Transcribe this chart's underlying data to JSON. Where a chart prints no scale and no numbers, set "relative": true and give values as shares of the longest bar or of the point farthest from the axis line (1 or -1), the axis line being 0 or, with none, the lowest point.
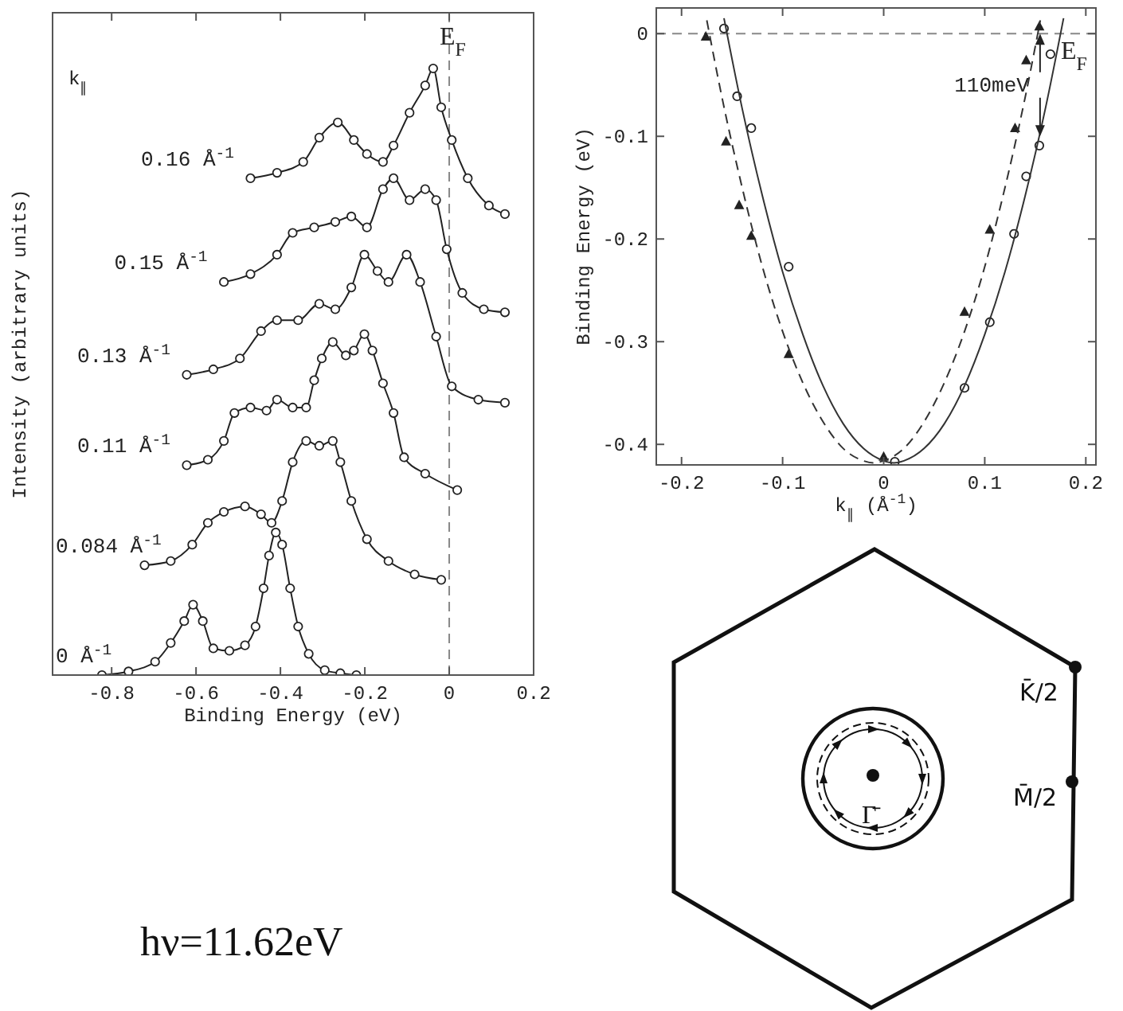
{
  "chart_data": [
    {
      "type": "line",
      "relative": true,
      "xlabel": "Binding Energy (eV)",
      "ylabel": "Intensity (arbitrary units)",
      "legend_title": "k$_{∥}$",
      "xlim": [
        -0.94,
        0.2
      ],
      "xticks": [
        -0.8,
        -0.6,
        -0.4,
        -0.2,
        0,
        0.2
      ],
      "marker": "circle",
      "grid": false,
      "ref_lines": [
        {
          "axis": "x",
          "value": 0,
          "label": "E$_{F}$",
          "line_style": "dashed"
        }
      ],
      "series": [
        {
          "name": "0.16 Å$^{-1}$",
          "color": "#222222",
          "x": [
            -0.471,
            -0.408,
            -0.346,
            -0.308,
            -0.264,
            -0.226,
            -0.195,
            -0.157,
            -0.132,
            -0.094,
            -0.057,
            -0.038,
            -0.019,
            0.006,
            0.044,
            0.094,
            0.132
          ],
          "values": [
            0.819,
            0.828,
            0.846,
            0.886,
            0.911,
            0.882,
            0.859,
            0.846,
            0.873,
            0.927,
            0.972,
            1.0,
            0.936,
            0.882,
            0.819,
            0.774,
            0.76
          ]
        },
        {
          "name": "0.15 Å$^{-1}$",
          "color": "#222222",
          "x": [
            -0.534,
            -0.471,
            -0.408,
            -0.371,
            -0.32,
            -0.27,
            -0.232,
            -0.195,
            -0.157,
            -0.132,
            -0.094,
            -0.057,
            -0.031,
            -0.006,
            0.031,
            0.082,
            0.132
          ],
          "values": [
            0.648,
            0.661,
            0.693,
            0.729,
            0.738,
            0.747,
            0.756,
            0.738,
            0.801,
            0.819,
            0.783,
            0.801,
            0.783,
            0.702,
            0.63,
            0.603,
            0.598
          ]
        },
        {
          "name": "0.13 Å$^{-1}$",
          "color": "#222222",
          "x": [
            -0.622,
            -0.559,
            -0.496,
            -0.446,
            -0.408,
            -0.358,
            -0.308,
            -0.27,
            -0.232,
            -0.201,
            -0.17,
            -0.144,
            -0.101,
            -0.069,
            -0.031,
            0.006,
            0.069,
            0.132
          ],
          "values": [
            0.495,
            0.504,
            0.522,
            0.567,
            0.585,
            0.585,
            0.612,
            0.603,
            0.639,
            0.693,
            0.666,
            0.648,
            0.693,
            0.648,
            0.558,
            0.476,
            0.454,
            0.449
          ]
        },
        {
          "name": "0.11 Å$^{-1}$",
          "color": "#222222",
          "x": [
            -0.622,
            -0.572,
            -0.534,
            -0.509,
            -0.471,
            -0.433,
            -0.408,
            -0.371,
            -0.339,
            -0.32,
            -0.302,
            -0.276,
            -0.245,
            -0.226,
            -0.201,
            -0.182,
            -0.157,
            -0.132,
            -0.107,
            -0.057,
            0.019
          ],
          "values": [
            0.346,
            0.355,
            0.386,
            0.432,
            0.441,
            0.436,
            0.454,
            0.441,
            0.441,
            0.486,
            0.522,
            0.549,
            0.527,
            0.535,
            0.562,
            0.535,
            0.481,
            0.432,
            0.359,
            0.332,
            0.305
          ]
        },
        {
          "name": "0.084 Å$^{-1}$",
          "color": "#222222",
          "x": [
            -0.722,
            -0.66,
            -0.609,
            -0.572,
            -0.534,
            -0.484,
            -0.446,
            -0.421,
            -0.396,
            -0.371,
            -0.339,
            -0.308,
            -0.276,
            -0.258,
            -0.232,
            -0.195,
            -0.144,
            -0.082,
            -0.019
          ],
          "values": [
            0.181,
            0.188,
            0.215,
            0.251,
            0.269,
            0.278,
            0.265,
            0.251,
            0.287,
            0.351,
            0.386,
            0.378,
            0.386,
            0.351,
            0.287,
            0.224,
            0.188,
            0.166,
            0.157
          ]
        },
        {
          "name": "0 Å$^{-1}$",
          "color": "#222222",
          "x": [
            -0.823,
            -0.76,
            -0.697,
            -0.66,
            -0.628,
            -0.607,
            -0.584,
            -0.559,
            -0.521,
            -0.484,
            -0.459,
            -0.44,
            -0.427,
            -0.411,
            -0.396,
            -0.377,
            -0.358,
            -0.333,
            -0.295,
            -0.258,
            -0.22
          ],
          "values": [
            0.0,
            0.006,
            0.022,
            0.053,
            0.089,
            0.116,
            0.089,
            0.044,
            0.04,
            0.049,
            0.08,
            0.143,
            0.197,
            0.235,
            0.215,
            0.143,
            0.08,
            0.035,
            0.008,
            0.003,
            0.0
          ]
        }
      ]
    },
    {
      "type": "scatter",
      "xlabel": "k$_{∥}$ (Å$^{-1}$)",
      "ylabel": "Binding Energy (eV)",
      "xlim": [
        -0.225,
        0.21
      ],
      "ylim": [
        -0.42,
        0.025
      ],
      "xticks": [
        -0.2,
        -0.1,
        0,
        0.1,
        0.2
      ],
      "yticks": [
        0,
        -0.1,
        -0.2,
        -0.3,
        -0.4
      ],
      "grid": false,
      "ref_lines": [
        {
          "axis": "y",
          "value": 0,
          "label": "E$_{F}$",
          "line_style": "dashed"
        }
      ],
      "annotations": [
        {
          "text": "110meV",
          "x": 0.15,
          "y": -0.05
        }
      ],
      "series": [
        {
          "type": "scatter",
          "marker": "circle",
          "color": "#222222",
          "x": [
            -0.158,
            -0.145,
            -0.131,
            -0.094,
            0.011,
            0.08,
            0.105,
            0.129,
            0.141,
            0.154,
            0.165
          ],
          "values": [
            0.005,
            -0.061,
            -0.092,
            -0.227,
            -0.417,
            -0.345,
            -0.281,
            -0.195,
            -0.139,
            -0.109,
            -0.02
          ]
        },
        {
          "type": "scatter",
          "marker": "triangle",
          "color": "#222222",
          "x": [
            -0.176,
            -0.156,
            -0.143,
            -0.131,
            -0.094,
            0,
            0.08,
            0.105,
            0.13,
            0.141,
            0.154
          ],
          "values": [
            -0.003,
            -0.105,
            -0.167,
            -0.197,
            -0.312,
            -0.412,
            -0.271,
            -0.191,
            -0.092,
            -0.026,
            0.007
          ]
        },
        {
          "type": "line",
          "line_style": "solid",
          "color": "#333333",
          "x": [
            -0.158,
            -0.14,
            -0.12,
            -0.1,
            -0.08,
            -0.06,
            -0.04,
            -0.02,
            0,
            0.01,
            0.02,
            0.04,
            0.06,
            0.08,
            0.1,
            0.12,
            0.14,
            0.16,
            0.178
          ],
          "values": [
            0.015,
            -0.073,
            -0.158,
            -0.232,
            -0.293,
            -0.343,
            -0.38,
            -0.404,
            -0.416,
            -0.418,
            -0.416,
            -0.404,
            -0.38,
            -0.343,
            -0.293,
            -0.232,
            -0.158,
            -0.073,
            0.015
          ]
        },
        {
          "type": "line",
          "line_style": "dashed",
          "color": "#333333",
          "x": [
            -0.175,
            -0.16,
            -0.14,
            -0.12,
            -0.1,
            -0.08,
            -0.06,
            -0.04,
            -0.02,
            -0.01,
            0,
            0.02,
            0.04,
            0.06,
            0.08,
            0.1,
            0.12,
            0.14,
            0.155
          ],
          "values": [
            0.013,
            -0.062,
            -0.15,
            -0.227,
            -0.29,
            -0.34,
            -0.378,
            -0.404,
            -0.416,
            -0.418,
            -0.416,
            -0.404,
            -0.378,
            -0.34,
            -0.29,
            -0.227,
            -0.15,
            -0.062,
            0.013
          ]
        }
      ]
    },
    {
      "type": "other",
      "annotations": [
        "K̄/2",
        "M̄/2",
        "Γ̄",
        "hν=11.62eV"
      ]
    }
  ]
}
